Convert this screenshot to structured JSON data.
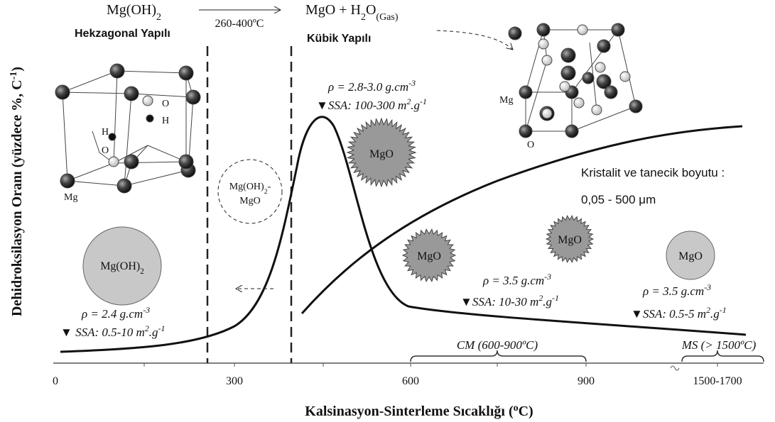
{
  "reaction": {
    "reactant": [
      {
        "t": "Mg(OH)"
      },
      {
        "t": "2",
        "s": "sub"
      }
    ],
    "condition": "260-400ºC",
    "product": [
      {
        "t": "MgO + H"
      },
      {
        "t": "2",
        "s": "sub"
      },
      {
        "t": "O"
      },
      {
        "t": "(Gas)",
        "s": "sub"
      }
    ]
  },
  "phases": {
    "left": "Hekzagonal Yapılı",
    "right": "Kübik Yapılı"
  },
  "structure_left": {
    "labels": [
      "O",
      "H",
      "H",
      "O",
      "Mg"
    ]
  },
  "structure_right": {
    "labels": [
      "Mg",
      "O"
    ]
  },
  "particles": {
    "hydroxide": [
      {
        "t": "Mg(OH)"
      },
      {
        "t": "2",
        "s": "sub"
      }
    ],
    "mixed": [
      {
        "t": "Mg(OH)"
      },
      {
        "t": "2",
        "s": "sub"
      },
      {
        "t": "-"
      }
    ],
    "mixed_oxide": "MgO",
    "oxide": [
      "MgO",
      "MgO",
      "MgO",
      "MgO"
    ]
  },
  "properties": [
    {
      "density": [
        {
          "t": "ρ = 2.4 g.cm"
        },
        {
          "t": "-3",
          "s": "sup"
        }
      ],
      "ssa": [
        {
          "t": "▼ SSA: 0.5-10 m"
        },
        {
          "t": "2",
          "s": "sup"
        },
        {
          "t": ".g"
        },
        {
          "t": "-1",
          "s": "sup"
        }
      ]
    },
    {
      "density": [
        {
          "t": "ρ = 2.8-3.0 g.cm"
        },
        {
          "t": "-3",
          "s": "sup"
        }
      ],
      "ssa": [
        {
          "t": "▼SSA: 100-300 m"
        },
        {
          "t": "2",
          "s": "sup"
        },
        {
          "t": ".g"
        },
        {
          "t": "-1",
          "s": "sup"
        }
      ]
    },
    {
      "density": [
        {
          "t": "ρ = 3.5 g.cm"
        },
        {
          "t": "-3",
          "s": "sup"
        }
      ],
      "ssa": [
        {
          "t": "▼SSA: 10-30 m"
        },
        {
          "t": "2",
          "s": "sup"
        },
        {
          "t": ".g"
        },
        {
          "t": "-1",
          "s": "sup"
        }
      ]
    },
    {
      "density": [
        {
          "t": "ρ = 3.5 g.cm"
        },
        {
          "t": "-3",
          "s": "sup"
        }
      ],
      "ssa": [
        {
          "t": "▼SSA: 0.5-5 m"
        },
        {
          "t": "2",
          "s": "sup"
        },
        {
          "t": ".g"
        },
        {
          "t": "-1",
          "s": "sup"
        }
      ]
    }
  ],
  "size": {
    "label": "Kristalit ve tanecik boyutu :",
    "range": "0,05 - 500 μm"
  },
  "ranges": [
    "CM (600-900ºC)",
    "MS (> 1500ºC)"
  ],
  "x_axis": {
    "title": [
      {
        "t": "Kalsinasyon-Sinterleme Sıcaklığı ("
      },
      {
        "t": "o",
        "s": "sup"
      },
      {
        "t": "C)"
      }
    ],
    "ticks": [
      "0",
      "300",
      "600",
      "900",
      "1500-1700"
    ]
  },
  "y_axis": {
    "title": [
      {
        "t": "Dehidroksilasyon Oranı (yüzdece %, C"
      },
      {
        "t": "-1",
        "s": "sup"
      },
      {
        "t": ")"
      }
    ]
  }
}
